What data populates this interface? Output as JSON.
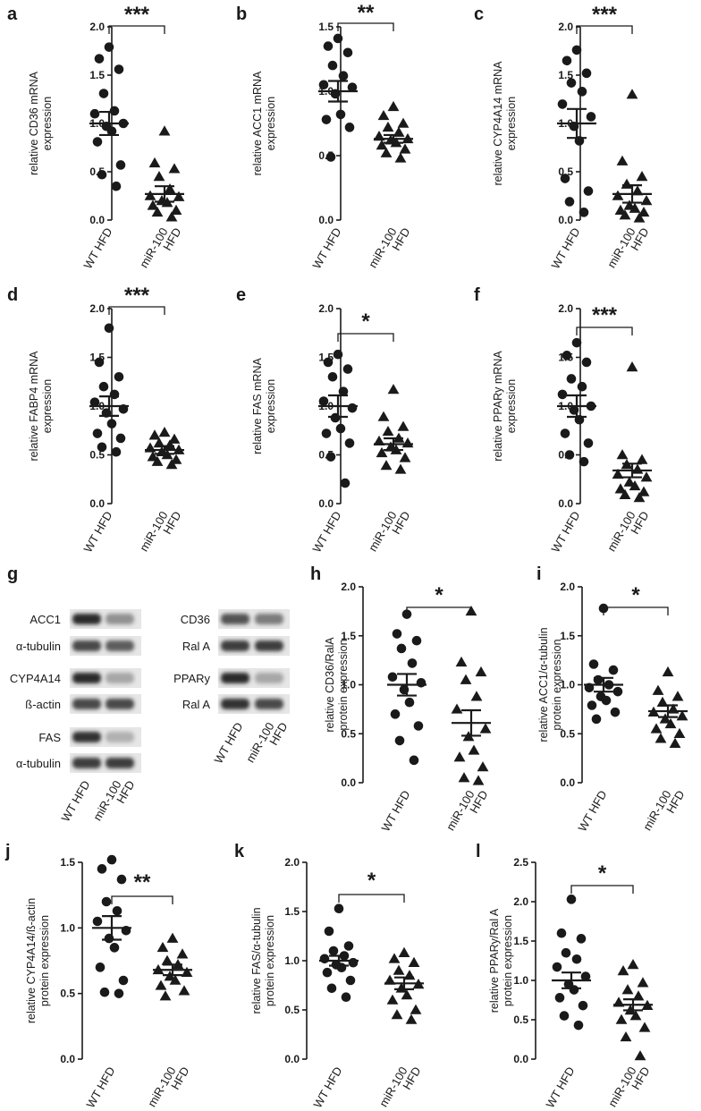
{
  "chart_data": [
    {
      "id": "a",
      "type": "scatter",
      "ylabel_lines": [
        "relative CD36 mRNA",
        "expression"
      ],
      "yticks": [
        "0.0",
        "0.5",
        "1.0",
        "1.5",
        "2.0"
      ],
      "ylim": [
        0,
        2.0
      ],
      "categories": [
        [
          "WT HFD"
        ],
        [
          "miR-100",
          "HFD"
        ]
      ],
      "significance": "***",
      "groups": [
        {
          "marker": "circle",
          "mean": 1.0,
          "sem": 0.12,
          "values": [
            1.79,
            1.67,
            1.56,
            1.31,
            1.13,
            1.1,
            1.0,
            0.97,
            0.92,
            0.81,
            0.57,
            0.47,
            0.35
          ]
        },
        {
          "marker": "triangle",
          "mean": 0.27,
          "sem": 0.08,
          "values": [
            0.92,
            0.59,
            0.53,
            0.45,
            0.32,
            0.25,
            0.24,
            0.2,
            0.18,
            0.15,
            0.1,
            0.08,
            0.03
          ]
        }
      ]
    },
    {
      "id": "b",
      "type": "scatter",
      "ylabel_lines": [
        "relative ACC1 mRNA",
        "expression"
      ],
      "yticks": [
        "0.0",
        "0.5",
        "1.0",
        "1.5"
      ],
      "ylim": [
        0,
        1.5
      ],
      "categories": [
        [
          "WT HFD"
        ],
        [
          "miR-100",
          "HFD"
        ]
      ],
      "significance": "**",
      "groups": [
        {
          "marker": "circle",
          "mean": 1.0,
          "sem": 0.08,
          "values": [
            1.41,
            1.35,
            1.3,
            1.2,
            1.12,
            1.05,
            1.03,
            0.98,
            0.82,
            0.78,
            0.72,
            0.49
          ]
        },
        {
          "marker": "triangle",
          "mean": 0.63,
          "sem": 0.03,
          "values": [
            0.88,
            0.81,
            0.75,
            0.72,
            0.68,
            0.65,
            0.63,
            0.62,
            0.6,
            0.58,
            0.55,
            0.52,
            0.48
          ]
        }
      ]
    },
    {
      "id": "c",
      "type": "scatter",
      "ylabel_lines": [
        "relative CYP4A14 mRNA",
        "expression"
      ],
      "yticks": [
        "0.0",
        "0.5",
        "1.0",
        "1.5",
        "2.0"
      ],
      "ylim": [
        0,
        2.0
      ],
      "categories": [
        [
          "WT HFD"
        ],
        [
          "miR-100",
          "HFD"
        ]
      ],
      "significance": "***",
      "groups": [
        {
          "marker": "circle",
          "mean": 1.0,
          "sem": 0.15,
          "values": [
            1.76,
            1.65,
            1.52,
            1.42,
            1.33,
            1.2,
            1.07,
            0.97,
            0.82,
            0.43,
            0.3,
            0.19,
            0.08
          ]
        },
        {
          "marker": "triangle",
          "mean": 0.27,
          "sem": 0.09,
          "values": [
            1.3,
            0.61,
            0.45,
            0.37,
            0.3,
            0.25,
            0.2,
            0.15,
            0.12,
            0.1,
            0.08,
            0.05,
            0.02
          ]
        }
      ]
    },
    {
      "id": "d",
      "type": "scatter",
      "ylabel_lines": [
        "relative FABP4 mRNA",
        "expression"
      ],
      "yticks": [
        "0.0",
        "0.5",
        "1.0",
        "1.5",
        "2.0"
      ],
      "ylim": [
        0,
        2.0
      ],
      "categories": [
        [
          "WT HFD"
        ],
        [
          "miR-100",
          "HFD"
        ]
      ],
      "significance": "***",
      "groups": [
        {
          "marker": "circle",
          "mean": 1.0,
          "sem": 0.1,
          "values": [
            1.8,
            1.45,
            1.3,
            1.2,
            1.12,
            1.04,
            0.97,
            0.93,
            0.82,
            0.72,
            0.67,
            0.58,
            0.53
          ]
        },
        {
          "marker": "triangle",
          "mean": 0.55,
          "sem": 0.04,
          "values": [
            0.73,
            0.7,
            0.66,
            0.62,
            0.6,
            0.57,
            0.55,
            0.53,
            0.5,
            0.48,
            0.45,
            0.43,
            0.4
          ]
        }
      ]
    },
    {
      "id": "e",
      "type": "scatter",
      "ylabel_lines": [
        "relative FAS mRNA",
        "expression"
      ],
      "yticks": [
        "0.0",
        "0.5",
        "1.0",
        "1.5",
        "2.0"
      ],
      "ylim": [
        0,
        2.0
      ],
      "categories": [
        [
          "WT HFD"
        ],
        [
          "miR-100",
          "HFD"
        ]
      ],
      "significance": "*",
      "groups": [
        {
          "marker": "circle",
          "mean": 1.0,
          "sem": 0.11,
          "values": [
            1.53,
            1.45,
            1.38,
            1.3,
            1.15,
            1.05,
            0.98,
            0.88,
            0.77,
            0.72,
            0.62,
            0.48,
            0.21
          ]
        },
        {
          "marker": "triangle",
          "mean": 0.61,
          "sem": 0.06,
          "values": [
            1.17,
            0.89,
            0.79,
            0.74,
            0.67,
            0.64,
            0.62,
            0.58,
            0.55,
            0.52,
            0.47,
            0.39,
            0.35
          ]
        }
      ]
    },
    {
      "id": "f",
      "type": "scatter",
      "ylabel_lines": [
        "relative PPARy mRNA",
        "expression"
      ],
      "yticks": [
        "0.0",
        "0.5",
        "1.0",
        "1.5",
        "2.0"
      ],
      "ylim": [
        0,
        2.0
      ],
      "categories": [
        [
          "WT HFD"
        ],
        [
          "miR-100",
          "HFD"
        ]
      ],
      "significance": "***",
      "groups": [
        {
          "marker": "circle",
          "mean": 1.0,
          "sem": 0.11,
          "values": [
            1.65,
            1.52,
            1.45,
            1.28,
            1.2,
            1.12,
            1.0,
            0.96,
            0.86,
            0.72,
            0.62,
            0.5,
            0.43
          ]
        },
        {
          "marker": "triangle",
          "mean": 0.34,
          "sem": 0.07,
          "values": [
            1.4,
            0.5,
            0.45,
            0.4,
            0.35,
            0.3,
            0.27,
            0.22,
            0.18,
            0.15,
            0.12,
            0.09,
            0.06
          ]
        }
      ]
    },
    {
      "id": "h",
      "type": "scatter",
      "ylabel_lines": [
        "relative CD36/RalA",
        "protein expression"
      ],
      "yticks": [
        "0.0",
        "0.5",
        "1.0",
        "1.5",
        "2.0"
      ],
      "ylim": [
        0,
        2.0
      ],
      "categories": [
        [
          "WT HFD"
        ],
        [
          "miR-100",
          "HFD"
        ]
      ],
      "significance": "*",
      "groups": [
        {
          "marker": "circle",
          "mean": 1.0,
          "sem": 0.11,
          "values": [
            1.72,
            1.52,
            1.45,
            1.37,
            1.22,
            1.08,
            1.02,
            0.95,
            0.82,
            0.7,
            0.58,
            0.43,
            0.23
          ]
        },
        {
          "marker": "triangle",
          "mean": 0.61,
          "sem": 0.13,
          "values": [
            1.75,
            1.23,
            1.13,
            1.05,
            0.88,
            0.75,
            0.55,
            0.47,
            0.33,
            0.26,
            0.16,
            0.05,
            0.02
          ]
        }
      ]
    },
    {
      "id": "i",
      "type": "scatter",
      "ylabel_lines": [
        "relative ACC1/α-tubulin",
        "protein expression"
      ],
      "yticks": [
        "0.0",
        "0.5",
        "1.0",
        "1.5",
        "2.0"
      ],
      "ylim": [
        0,
        2.0
      ],
      "categories": [
        [
          "WT HFD"
        ],
        [
          "miR-100",
          "HFD"
        ]
      ],
      "significance": "*",
      "groups": [
        {
          "marker": "circle",
          "mean": 1.0,
          "sem": 0.07,
          "values": [
            1.78,
            1.21,
            1.15,
            1.05,
            1.0,
            0.97,
            0.93,
            0.88,
            0.84,
            0.79,
            0.72,
            0.65
          ]
        },
        {
          "marker": "triangle",
          "mean": 0.73,
          "sem": 0.06,
          "values": [
            1.13,
            0.94,
            0.88,
            0.82,
            0.75,
            0.72,
            0.68,
            0.65,
            0.6,
            0.55,
            0.5,
            0.45,
            0.4
          ]
        }
      ]
    },
    {
      "id": "j",
      "type": "scatter",
      "ylabel_lines": [
        "relative CYP4A14/ß-actin",
        "protein expression"
      ],
      "yticks": [
        "0.0",
        "0.5",
        "1.0",
        "1.5"
      ],
      "ylim": [
        0,
        1.5
      ],
      "categories": [
        [
          "WT HFD"
        ],
        [
          "miR-100",
          "HFD"
        ]
      ],
      "significance": "**",
      "groups": [
        {
          "marker": "circle",
          "mean": 1.0,
          "sem": 0.09,
          "values": [
            1.52,
            1.45,
            1.37,
            1.2,
            1.13,
            1.05,
            0.98,
            0.92,
            0.85,
            0.7,
            0.6,
            0.51,
            0.5
          ]
        },
        {
          "marker": "triangle",
          "mean": 0.68,
          "sem": 0.04,
          "values": [
            0.92,
            0.85,
            0.8,
            0.75,
            0.72,
            0.68,
            0.66,
            0.63,
            0.6,
            0.56,
            0.52,
            0.48
          ]
        }
      ]
    },
    {
      "id": "k",
      "type": "scatter",
      "ylabel_lines": [
        "relative FAS/α-tubulin",
        "protein expression"
      ],
      "yticks": [
        "0.0",
        "0.5",
        "1.0",
        "1.5",
        "2.0"
      ],
      "ylim": [
        0,
        2.0
      ],
      "categories": [
        [
          "WT HFD"
        ],
        [
          "miR-100",
          "HFD"
        ]
      ],
      "significance": "*",
      "groups": [
        {
          "marker": "circle",
          "mean": 1.0,
          "sem": 0.05,
          "values": [
            1.53,
            1.3,
            1.15,
            1.1,
            1.05,
            1.02,
            0.98,
            0.96,
            0.93,
            0.88,
            0.8,
            0.72,
            0.63
          ]
        },
        {
          "marker": "triangle",
          "mean": 0.77,
          "sem": 0.06,
          "values": [
            1.08,
            1.02,
            0.98,
            0.9,
            0.85,
            0.8,
            0.76,
            0.72,
            0.65,
            0.6,
            0.5,
            0.45,
            0.4
          ]
        }
      ]
    },
    {
      "id": "l",
      "type": "scatter",
      "ylabel_lines": [
        "relative PPARy/Ral A",
        "protein expression"
      ],
      "yticks": [
        "0.0",
        "0.5",
        "1.0",
        "1.5",
        "2.0",
        "2.5"
      ],
      "ylim": [
        0,
        2.5
      ],
      "categories": [
        [
          "WT HFD"
        ],
        [
          "miR-100",
          "HFD"
        ]
      ],
      "significance": "*",
      "groups": [
        {
          "marker": "circle",
          "mean": 1.0,
          "sem": 0.1,
          "values": [
            2.03,
            1.6,
            1.53,
            1.35,
            1.27,
            1.17,
            1.05,
            0.95,
            0.88,
            0.78,
            0.68,
            0.55,
            0.43
          ]
        },
        {
          "marker": "triangle",
          "mean": 0.69,
          "sem": 0.07,
          "values": [
            1.2,
            1.12,
            0.97,
            0.88,
            0.8,
            0.72,
            0.68,
            0.62,
            0.55,
            0.5,
            0.4,
            0.28,
            0.04
          ]
        }
      ]
    }
  ],
  "blot": {
    "letter": "g",
    "left_labels": [
      "ACC1",
      "α-tubulin",
      "CYP4A14",
      "ß-actin",
      "FAS",
      "α-tubulin"
    ],
    "right_labels": [
      "CD36",
      "Ral A",
      "PPARy",
      "Ral A"
    ],
    "lanes": [
      [
        "WT HFD"
      ],
      [
        "miR-100",
        "HFD"
      ]
    ]
  }
}
